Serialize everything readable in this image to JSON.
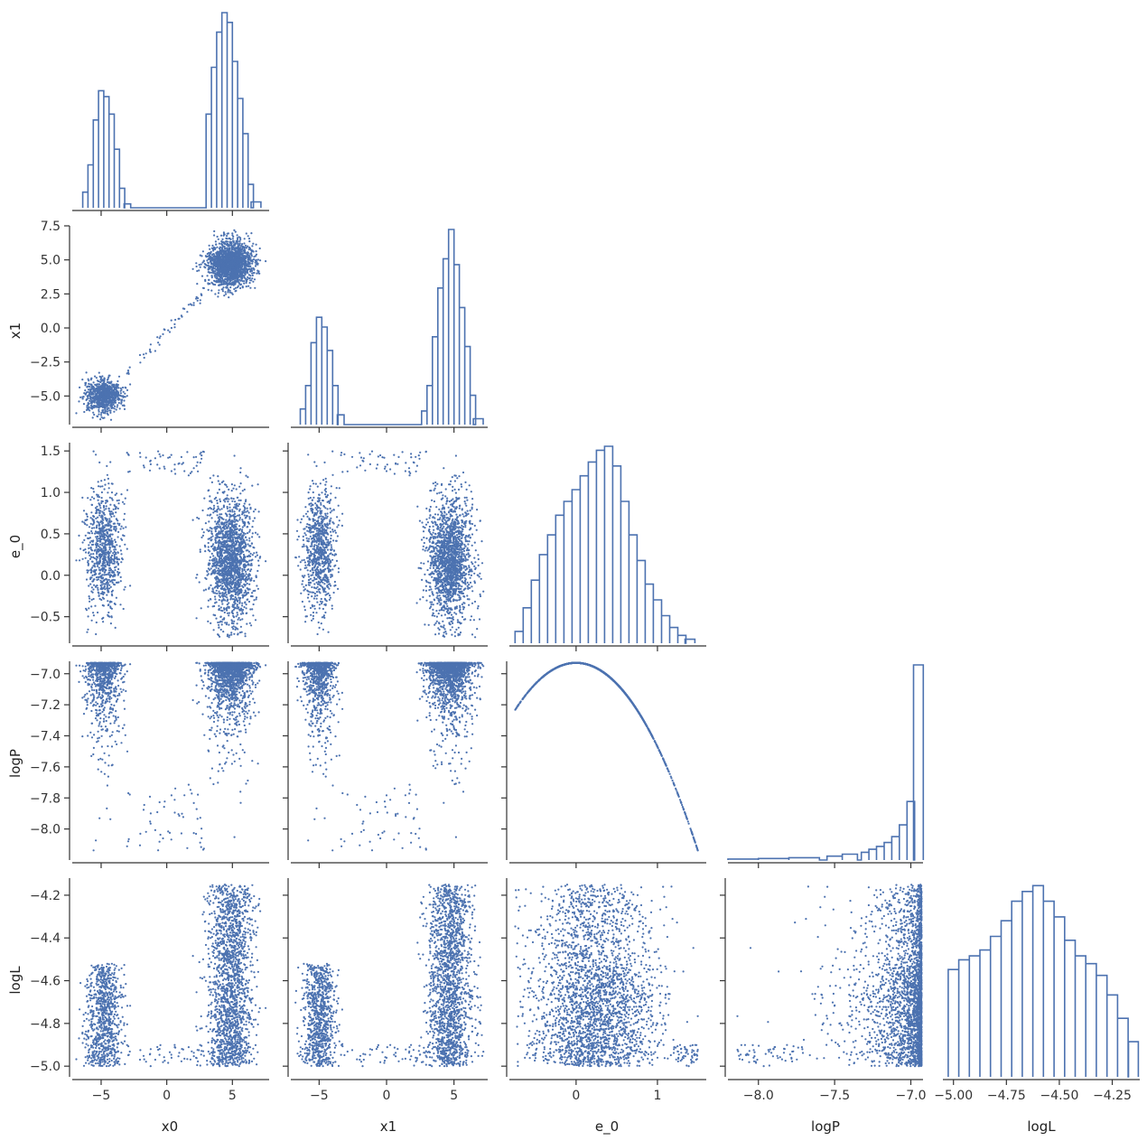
{
  "chart_data": {
    "type": "scatter",
    "variables": [
      {
        "label": "x0",
        "range": [
          -7.2,
          7.8
        ],
        "ticks": [
          -5,
          0,
          5
        ],
        "tick_labels": [
          "−5",
          "0",
          "5"
        ]
      },
      {
        "label": "x1",
        "range": [
          -7.1,
          7.5
        ],
        "ticks": [
          -5.0,
          -2.5,
          0.0,
          2.5,
          5.0,
          7.5
        ],
        "tick_labels": [
          "−5.0",
          "−2.5",
          "0.0",
          "2.5",
          "5.0",
          "7.5"
        ],
        "xticks": [
          -5,
          0,
          5
        ],
        "xtick_labels": [
          "−5",
          "0",
          "5"
        ]
      },
      {
        "label": "e_0",
        "range": [
          -0.82,
          1.6
        ],
        "ticks": [
          -0.5,
          0.0,
          0.5,
          1.0,
          1.5
        ],
        "tick_labels": [
          "−0.5",
          "0.0",
          "0.5",
          "1.0",
          "1.5"
        ],
        "xticks": [
          0,
          1
        ],
        "xtick_labels": [
          "0",
          "1"
        ]
      },
      {
        "label": "logP",
        "range": [
          -8.2,
          -6.92
        ],
        "ticks": [
          -8.0,
          -7.8,
          -7.6,
          -7.4,
          -7.2,
          -7.0
        ],
        "tick_labels": [
          "−8.0",
          "−7.8",
          "−7.6",
          "−7.4",
          "−7.2",
          "−7.0"
        ],
        "xticks": [
          -8.0,
          -7.5,
          -7.0
        ],
        "xtick_labels": [
          "−8.0",
          "−7.5",
          "−7.0"
        ]
      },
      {
        "label": "logL",
        "range": [
          -5.05,
          -4.12
        ],
        "ticks": [
          -5.0,
          -4.8,
          -4.6,
          -4.4,
          -4.2
        ],
        "tick_labels": [
          "−5.0",
          "−4.8",
          "−4.6",
          "−4.4",
          "−4.2"
        ],
        "xticks": [
          -5.0,
          -4.75,
          -4.5,
          -4.25
        ],
        "xtick_labels": [
          "−5.00",
          "−4.75",
          "−4.50",
          "−4.25"
        ]
      }
    ],
    "diagonal": {
      "type": "histogram",
      "x0_hist": {
        "centers": [
          -6.2,
          -5.8,
          -5.4,
          -5.0,
          -4.6,
          -4.2,
          -3.8,
          -3.4,
          -3.0,
          3.2,
          3.6,
          4.0,
          4.4,
          4.8,
          5.2,
          5.6,
          6.0,
          6.4,
          6.8
        ],
        "counts": [
          0.08,
          0.22,
          0.45,
          0.6,
          0.57,
          0.48,
          0.3,
          0.1,
          0.02,
          0.48,
          0.72,
          0.9,
          1.0,
          0.95,
          0.75,
          0.56,
          0.38,
          0.12,
          0.03
        ]
      },
      "x1_hist": {
        "centers": [
          -6.2,
          -5.8,
          -5.4,
          -5.0,
          -4.6,
          -4.2,
          -3.8,
          -3.4,
          2.8,
          3.2,
          3.6,
          4.0,
          4.4,
          4.8,
          5.2,
          5.6,
          6.0,
          6.4,
          6.8
        ],
        "counts": [
          0.08,
          0.2,
          0.42,
          0.55,
          0.5,
          0.38,
          0.2,
          0.05,
          0.07,
          0.2,
          0.45,
          0.7,
          0.85,
          1.0,
          0.82,
          0.6,
          0.4,
          0.15,
          0.03
        ]
      },
      "e_0_hist": {
        "centers": [
          -0.7,
          -0.6,
          -0.5,
          -0.4,
          -0.3,
          -0.2,
          -0.1,
          0.0,
          0.1,
          0.2,
          0.3,
          0.4,
          0.5,
          0.6,
          0.7,
          0.8,
          0.9,
          1.0,
          1.1,
          1.2,
          1.3,
          1.4
        ],
        "counts": [
          0.06,
          0.18,
          0.32,
          0.45,
          0.55,
          0.65,
          0.72,
          0.78,
          0.85,
          0.92,
          0.98,
          1.0,
          0.9,
          0.72,
          0.55,
          0.42,
          0.3,
          0.22,
          0.14,
          0.08,
          0.04,
          0.02
        ]
      },
      "logP_hist": {
        "centers": [
          -8.1,
          -7.9,
          -7.7,
          -7.5,
          -7.4,
          -7.3,
          -7.25,
          -7.2,
          -7.15,
          -7.1,
          -7.05,
          -7.0,
          -6.95
        ],
        "counts": [
          0.005,
          0.008,
          0.012,
          0.02,
          0.03,
          0.04,
          0.055,
          0.07,
          0.09,
          0.12,
          0.18,
          0.3,
          1.0
        ]
      },
      "logL_hist": {
        "centers": [
          -5.0,
          -4.95,
          -4.9,
          -4.85,
          -4.8,
          -4.75,
          -4.7,
          -4.65,
          -4.6,
          -4.55,
          -4.5,
          -4.45,
          -4.4,
          -4.35,
          -4.3,
          -4.25,
          -4.2,
          -4.15
        ],
        "counts": [
          0.55,
          0.6,
          0.62,
          0.65,
          0.72,
          0.8,
          0.9,
          0.95,
          0.98,
          0.9,
          0.82,
          0.7,
          0.62,
          0.58,
          0.52,
          0.42,
          0.3,
          0.18
        ]
      }
    },
    "off_diagonal": {
      "type": "scatter",
      "clusters": [
        {
          "name": "",
          "x0_center": -4.8,
          "x1_center": -5.0,
          "e_0_mean": 0.3,
          "logP_peak": -6.95,
          "logL_max": -4.52,
          "weight": 0.33
        },
        {
          "name": "",
          "x0_center": 4.9,
          "x1_center": 4.7,
          "e_0_mean": 0.2,
          "logP_peak": -6.95,
          "logL_max": -4.15,
          "weight": 0.67
        }
      ],
      "relation_logP_e_0": "logP ≈ −6.93 − 0.54·e_0²"
    },
    "colors": {
      "accent": "#4c72b0",
      "axis": "#333333",
      "background": "#ffffff"
    },
    "grid": false,
    "legend": "none"
  }
}
